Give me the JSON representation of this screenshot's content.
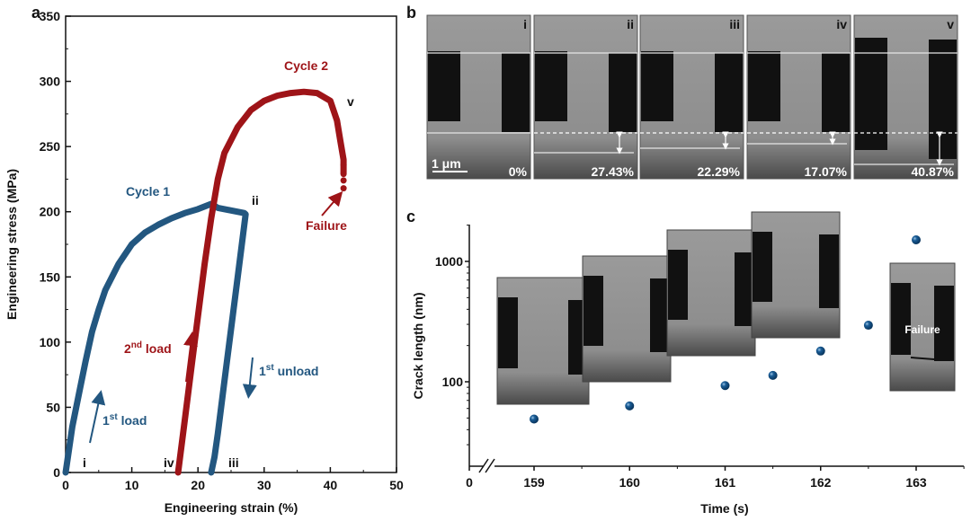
{
  "colors": {
    "cycle1": "#235780",
    "cycle2": "#9e1418",
    "point": "#0d4a80"
  },
  "panel_labels": {
    "a": "a",
    "b": "b",
    "c": "c"
  },
  "chart_data": [
    {
      "type": "line",
      "panel": "a",
      "xlabel": "Engineering strain (%)",
      "ylabel": "Engineering stress (MPa)",
      "xlim": [
        0,
        50
      ],
      "ylim": [
        0,
        350
      ],
      "xticks": [
        "0",
        "10",
        "20",
        "30",
        "40",
        "50"
      ],
      "yticks": [
        "0",
        "50",
        "100",
        "150",
        "200",
        "250",
        "300",
        "350"
      ],
      "series": [
        {
          "name": "Cycle 1",
          "x": [
            0,
            1,
            2,
            3,
            4,
            5,
            6,
            8,
            10,
            12,
            14,
            16,
            18,
            20,
            22,
            23,
            25,
            27,
            27.2,
            26,
            25,
            24,
            23,
            22.5,
            22
          ],
          "y": [
            0,
            35,
            60,
            85,
            108,
            125,
            140,
            160,
            175,
            184,
            190,
            195,
            199,
            202,
            206,
            203,
            201,
            199,
            198,
            150,
            110,
            70,
            30,
            12,
            0
          ]
        },
        {
          "name": "Cycle 2",
          "x": [
            17,
            18,
            19,
            20,
            21,
            22,
            23,
            24,
            26,
            28,
            30,
            32,
            34,
            36,
            38,
            40,
            41,
            41.5,
            42,
            42
          ],
          "y": [
            0,
            40,
            80,
            120,
            160,
            195,
            225,
            245,
            265,
            278,
            285,
            289,
            291,
            292,
            291,
            285,
            270,
            255,
            240,
            230
          ]
        }
      ],
      "failure_points": {
        "x": [
          42,
          42,
          42,
          42
        ],
        "y": [
          236,
          229,
          224,
          218
        ]
      },
      "annotations": {
        "cycle1": "Cycle 1",
        "cycle2": "Cycle 2",
        "failure": "Failure",
        "first_load_num": "1",
        "first_load_sup": "st",
        "first_load_word": " load",
        "second_load_num": "2",
        "second_load_sup": "nd",
        "second_load_word": " load",
        "first_unload_num": "1",
        "first_unload_sup": "st",
        "first_unload_word": " unload",
        "i": "i",
        "ii": "ii",
        "iii": "iii",
        "iv": "iv",
        "v": "v"
      }
    },
    {
      "type": "scatter",
      "panel": "c",
      "xlabel": "Time (s)",
      "ylabel": "Crack length (nm)",
      "yscale": "log",
      "ylim": [
        20,
        2000
      ],
      "xticks": [
        "0",
        "159",
        "160",
        "161",
        "162",
        "163"
      ],
      "yticks": [
        "100",
        "1000"
      ],
      "x": [
        159,
        160,
        161,
        161.5,
        162,
        162.5,
        163
      ],
      "y": [
        49,
        63,
        93,
        113,
        180,
        295,
        1510
      ],
      "inset_label": "Failure"
    }
  ],
  "micrographs": {
    "scale_bar": "1 μm",
    "frames": [
      {
        "roman": "i",
        "strain": "0%"
      },
      {
        "roman": "ii",
        "strain": "27.43%"
      },
      {
        "roman": "iii",
        "strain": "22.29%"
      },
      {
        "roman": "iv",
        "strain": "17.07%"
      },
      {
        "roman": "v",
        "strain": "40.87%"
      }
    ]
  }
}
